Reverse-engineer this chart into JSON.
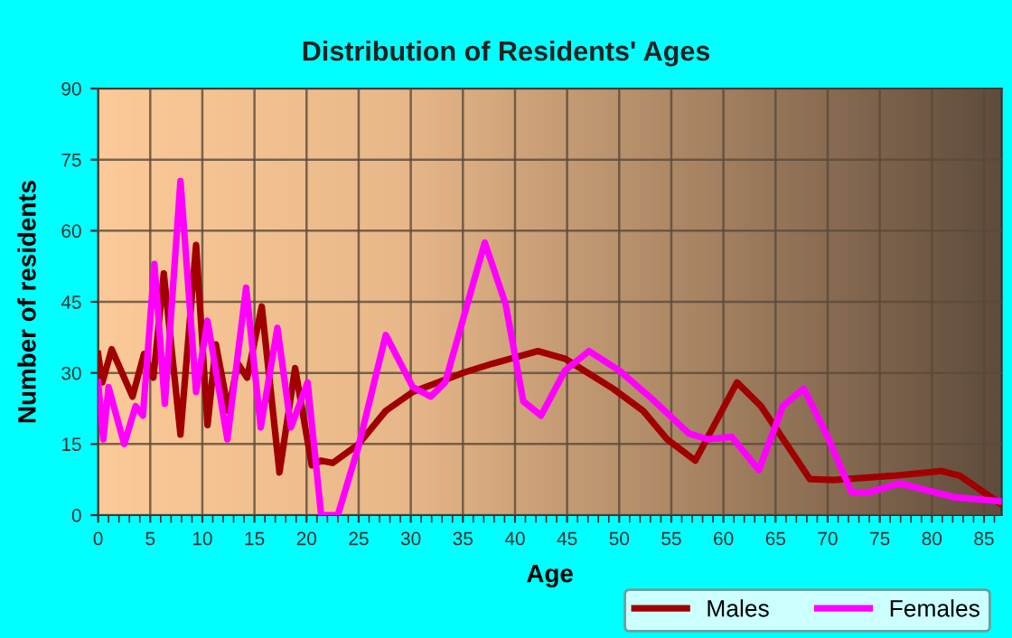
{
  "chart_data": {
    "type": "line",
    "title": "Distribution of Residents' Ages",
    "xlabel": "Age",
    "ylabel": "Number of residents",
    "xlim": [
      0,
      86.7
    ],
    "ylim": [
      0,
      90
    ],
    "xticks": [
      0,
      5,
      10,
      15,
      20,
      25,
      30,
      35,
      40,
      45,
      50,
      55,
      60,
      65,
      70,
      75,
      80,
      85
    ],
    "yticks": [
      0,
      15,
      30,
      45,
      60,
      75,
      90
    ],
    "grid": true,
    "legend": "bottom",
    "line_style": "solid",
    "marker": "none",
    "series": [
      {
        "name": "Males",
        "color": "#a00000",
        "x": [
          0,
          0.4,
          1.3,
          3.3,
          4.4,
          5.3,
          6.3,
          7.9,
          9.4,
          10.5,
          11.3,
          12.5,
          13.4,
          14.3,
          15.7,
          17.4,
          18.9,
          20.5,
          21.4,
          22.5,
          25,
          27.6,
          30.2,
          35,
          37.9,
          42.2,
          44.8,
          49.4,
          52.3,
          54.6,
          57.3,
          61.3,
          63.6,
          68.3,
          70.6,
          76.3,
          80.9,
          82.7,
          86.7
        ],
        "values": [
          34,
          28,
          35,
          25,
          34,
          29,
          51,
          17,
          57,
          19,
          36,
          22,
          32,
          29,
          44,
          9,
          31,
          10.5,
          11.5,
          11,
          15,
          22,
          26,
          30,
          32,
          34.6,
          33,
          26.7,
          22,
          16,
          11.5,
          28,
          23,
          7.6,
          7.4,
          8.3,
          9.3,
          8.3,
          2.2
        ]
      },
      {
        "name": "Females",
        "color": "#ff00ff",
        "x": [
          0,
          0.5,
          1,
          2.5,
          3.6,
          4.3,
          5.4,
          6.4,
          7.9,
          9.4,
          10.5,
          12.4,
          14.2,
          15.6,
          17.2,
          18.5,
          20.1,
          21.4,
          23,
          25,
          27.6,
          30.2,
          31.9,
          33.3,
          37.1,
          39.1,
          40.8,
          42.5,
          44.8,
          47.1,
          50,
          52.9,
          56.7,
          58.5,
          60.8,
          63.4,
          65.7,
          67.7,
          70,
          72.3,
          74,
          76.9,
          82.1,
          86.7
        ],
        "values": [
          28,
          16,
          27,
          15,
          23,
          21,
          53,
          23.5,
          70.5,
          26,
          41,
          16,
          48,
          18.5,
          39.5,
          18.5,
          28,
          0,
          0,
          14.6,
          38,
          27,
          25,
          28,
          57.5,
          44.5,
          24,
          21,
          30.5,
          34.6,
          30.5,
          25,
          17.2,
          16,
          16.5,
          9.5,
          23,
          26.7,
          16.5,
          4.8,
          4.8,
          6.7,
          3.8,
          2.9
        ]
      }
    ]
  }
}
